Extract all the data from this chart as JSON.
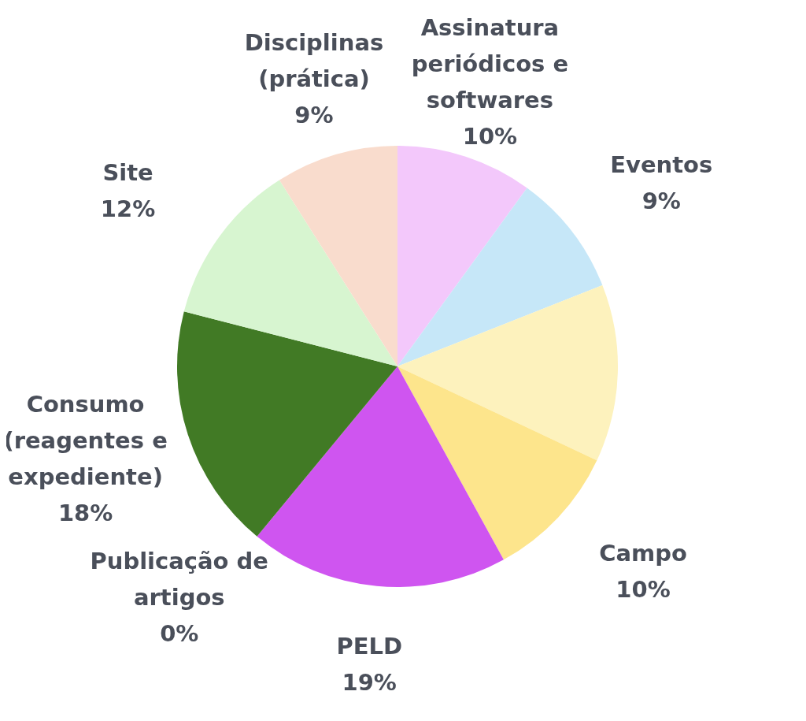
{
  "chart_data": {
    "type": "pie",
    "categories": [
      "Assinatura periódicos e softwares",
      "Eventos",
      null,
      "Campo",
      "PELD",
      "Publicação de artigos",
      "Consumo (reagentes e expediente)",
      "Site",
      "Disciplinas (prática)"
    ],
    "values": [
      10,
      9,
      13,
      10,
      19,
      0,
      18,
      12,
      9
    ],
    "value_labels": [
      "10%",
      "9%",
      null,
      "10%",
      "19%",
      "0%",
      "18%",
      "12%",
      "9%"
    ],
    "colors": [
      "#f3c8fb",
      "#c6e7f8",
      "#fdf2bd",
      "#fde58c",
      "#cf55f0",
      "#9a9a9a",
      "#417a25",
      "#d7f5d0",
      "#f9dccd"
    ],
    "legend": false
  }
}
